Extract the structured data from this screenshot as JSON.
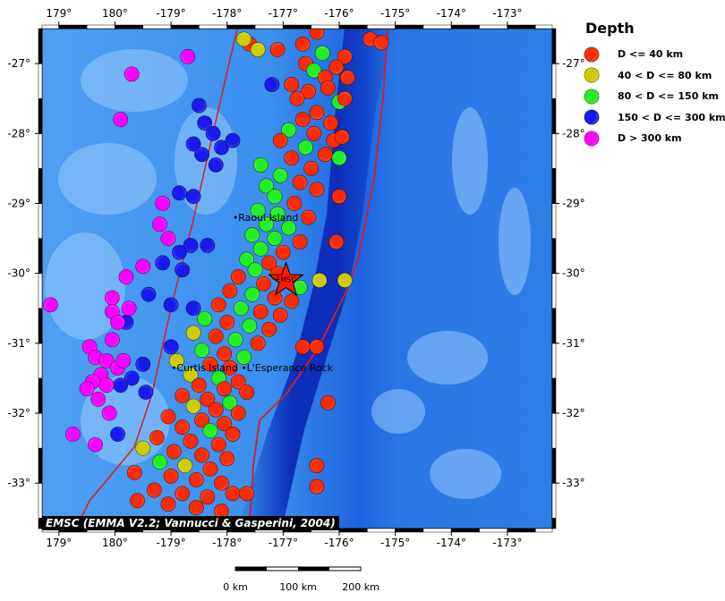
{
  "map": {
    "lon_ticks": [
      {
        "label": "179°",
        "lon": 179
      },
      {
        "label": "180°",
        "lon": 180
      },
      {
        "label": "-179°",
        "lon": 181
      },
      {
        "label": "-178°",
        "lon": 182
      },
      {
        "label": "-177°",
        "lon": 183
      },
      {
        "label": "-176°",
        "lon": 184
      },
      {
        "label": "-175°",
        "lon": 185
      },
      {
        "label": "-174°",
        "lon": 186
      },
      {
        "label": "-173°",
        "lon": 187
      }
    ],
    "lat_ticks": [
      {
        "label": "-27°",
        "lat": -27
      },
      {
        "label": "-28°",
        "lat": -28
      },
      {
        "label": "-29°",
        "lat": -29
      },
      {
        "label": "-30°",
        "lat": -30
      },
      {
        "label": "-31°",
        "lat": -31
      },
      {
        "label": "-32°",
        "lat": -32
      },
      {
        "label": "-33°",
        "lat": -33
      }
    ],
    "extent": {
      "lon_min": 178.7,
      "lon_max": 187.8,
      "lat_min": -33.65,
      "lat_max": -26.5
    },
    "colors": {
      "ocean": "#2f86e8",
      "trench": "#0a2fb8",
      "plate_boundary": "#d71e1e"
    },
    "epicenter": {
      "label": "EMSC",
      "lat": -30.1,
      "lon": 183.05,
      "color": "#ff1a00"
    },
    "place_labels": [
      {
        "text": "Raoul Island",
        "lat": -29.25,
        "lon": 182.2
      },
      {
        "text": "Curtis Island",
        "lat": -31.4,
        "lon": 181.1
      },
      {
        "text": "L'Esperance Rock",
        "lat": -31.4,
        "lon": 182.35
      }
    ]
  },
  "legend": {
    "title": "Depth",
    "items": [
      {
        "label": "D <= 40 km",
        "color": "#ff2a00"
      },
      {
        "label": "40 < D <= 80 km",
        "color": "#cccc00"
      },
      {
        "label": "80 < D <= 150 km",
        "color": "#22ee22"
      },
      {
        "label": "150 < D <= 300 km",
        "color": "#1a1aee"
      },
      {
        "label": "D > 300 km",
        "color": "#ff00ff"
      }
    ]
  },
  "credit": "EMSC (EMMA V2.2; Vannucci & Gasperini, 2004)",
  "scalebar": {
    "labels": [
      "0 km",
      "100 km",
      "200 km"
    ]
  },
  "focal_mechanisms": [
    {
      "lat": -26.55,
      "lon": 183.6,
      "d": "s"
    },
    {
      "lat": -26.72,
      "lon": 183.35,
      "d": "s"
    },
    {
      "lat": -26.65,
      "lon": 184.55,
      "d": "s"
    },
    {
      "lat": -26.7,
      "lon": 184.75,
      "d": "s"
    },
    {
      "lat": -26.72,
      "lon": 182.4,
      "d": "s"
    },
    {
      "lat": -26.8,
      "lon": 182.9,
      "d": "s"
    },
    {
      "lat": -26.85,
      "lon": 183.7,
      "d": "m"
    },
    {
      "lat": -26.9,
      "lon": 184.1,
      "d": "s"
    },
    {
      "lat": -27.0,
      "lon": 183.4,
      "d": "s"
    },
    {
      "lat": -27.05,
      "lon": 183.95,
      "d": "s"
    },
    {
      "lat": -27.1,
      "lon": 183.55,
      "d": "m"
    },
    {
      "lat": -27.2,
      "lon": 183.75,
      "d": "s"
    },
    {
      "lat": -27.3,
      "lon": 183.15,
      "d": "s"
    },
    {
      "lat": -27.35,
      "lon": 183.8,
      "d": "s"
    },
    {
      "lat": -27.4,
      "lon": 183.45,
      "d": "s"
    },
    {
      "lat": -27.5,
      "lon": 183.25,
      "d": "s"
    },
    {
      "lat": -27.55,
      "lon": 184.0,
      "d": "m"
    },
    {
      "lat": -27.7,
      "lon": 183.6,
      "d": "s"
    },
    {
      "lat": -27.8,
      "lon": 183.35,
      "d": "s"
    },
    {
      "lat": -27.85,
      "lon": 183.85,
      "d": "s"
    },
    {
      "lat": -27.95,
      "lon": 183.1,
      "d": "m"
    },
    {
      "lat": -28.0,
      "lon": 183.55,
      "d": "s"
    },
    {
      "lat": -28.1,
      "lon": 183.9,
      "d": "s"
    },
    {
      "lat": -28.1,
      "lon": 182.95,
      "d": "s"
    },
    {
      "lat": -28.2,
      "lon": 183.4,
      "d": "m"
    },
    {
      "lat": -28.3,
      "lon": 183.75,
      "d": "s"
    },
    {
      "lat": -28.35,
      "lon": 183.15,
      "d": "s"
    },
    {
      "lat": -28.45,
      "lon": 182.6,
      "d": "m"
    },
    {
      "lat": -28.5,
      "lon": 183.5,
      "d": "s"
    },
    {
      "lat": -28.6,
      "lon": 182.95,
      "d": "m"
    },
    {
      "lat": -28.7,
      "lon": 183.3,
      "d": "s"
    },
    {
      "lat": -28.75,
      "lon": 182.7,
      "d": "m"
    },
    {
      "lat": -28.8,
      "lon": 183.6,
      "d": "s"
    },
    {
      "lat": -28.9,
      "lon": 182.85,
      "d": "m"
    },
    {
      "lat": -29.0,
      "lon": 183.2,
      "d": "s"
    },
    {
      "lat": -29.1,
      "lon": 182.55,
      "d": "m"
    },
    {
      "lat": -29.15,
      "lon": 182.9,
      "d": "m"
    },
    {
      "lat": -29.2,
      "lon": 183.45,
      "d": "s"
    },
    {
      "lat": -29.3,
      "lon": 182.7,
      "d": "m"
    },
    {
      "lat": -29.35,
      "lon": 183.1,
      "d": "m"
    },
    {
      "lat": -29.45,
      "lon": 182.45,
      "d": "m"
    },
    {
      "lat": -29.5,
      "lon": 182.85,
      "d": "m"
    },
    {
      "lat": -29.55,
      "lon": 183.3,
      "d": "s"
    },
    {
      "lat": -29.65,
      "lon": 182.6,
      "d": "m"
    },
    {
      "lat": -29.7,
      "lon": 183.0,
      "d": "s"
    },
    {
      "lat": -29.8,
      "lon": 182.35,
      "d": "m"
    },
    {
      "lat": -29.85,
      "lon": 182.75,
      "d": "s"
    },
    {
      "lat": -29.95,
      "lon": 182.5,
      "d": "m"
    },
    {
      "lat": -30.0,
      "lon": 182.9,
      "d": "s"
    },
    {
      "lat": -30.05,
      "lon": 182.2,
      "d": "s"
    },
    {
      "lat": -30.1,
      "lon": 183.65,
      "d": "i"
    },
    {
      "lat": -30.15,
      "lon": 182.65,
      "d": "s"
    },
    {
      "lat": -30.2,
      "lon": 183.3,
      "d": "m"
    },
    {
      "lat": -30.25,
      "lon": 182.05,
      "d": "s"
    },
    {
      "lat": -30.3,
      "lon": 182.45,
      "d": "m"
    },
    {
      "lat": -30.35,
      "lon": 182.85,
      "d": "s"
    },
    {
      "lat": -30.4,
      "lon": 183.15,
      "d": "s"
    },
    {
      "lat": -30.45,
      "lon": 181.85,
      "d": "s"
    },
    {
      "lat": -30.5,
      "lon": 182.25,
      "d": "m"
    },
    {
      "lat": -30.55,
      "lon": 182.6,
      "d": "s"
    },
    {
      "lat": -30.6,
      "lon": 182.95,
      "d": "s"
    },
    {
      "lat": -30.65,
      "lon": 181.6,
      "d": "m"
    },
    {
      "lat": -30.7,
      "lon": 182.0,
      "d": "s"
    },
    {
      "lat": -30.75,
      "lon": 182.4,
      "d": "m"
    },
    {
      "lat": -30.8,
      "lon": 182.75,
      "d": "s"
    },
    {
      "lat": -30.85,
      "lon": 181.4,
      "d": "i"
    },
    {
      "lat": -30.9,
      "lon": 181.8,
      "d": "s"
    },
    {
      "lat": -30.95,
      "lon": 182.15,
      "d": "m"
    },
    {
      "lat": -31.0,
      "lon": 182.55,
      "d": "s"
    },
    {
      "lat": -31.05,
      "lon": 183.35,
      "d": "s"
    },
    {
      "lat": -31.1,
      "lon": 181.55,
      "d": "m"
    },
    {
      "lat": -31.15,
      "lon": 181.95,
      "d": "s"
    },
    {
      "lat": -31.2,
      "lon": 182.3,
      "d": "m"
    },
    {
      "lat": -31.25,
      "lon": 181.1,
      "d": "i"
    },
    {
      "lat": -31.3,
      "lon": 181.7,
      "d": "s"
    },
    {
      "lat": -31.35,
      "lon": 182.05,
      "d": "s"
    },
    {
      "lat": -31.45,
      "lon": 181.35,
      "d": "i"
    },
    {
      "lat": -31.5,
      "lon": 181.85,
      "d": "m"
    },
    {
      "lat": -31.55,
      "lon": 182.2,
      "d": "s"
    },
    {
      "lat": -31.6,
      "lon": 181.5,
      "d": "s"
    },
    {
      "lat": -31.65,
      "lon": 181.95,
      "d": "s"
    },
    {
      "lat": -31.7,
      "lon": 182.35,
      "d": "s"
    },
    {
      "lat": -31.75,
      "lon": 181.2,
      "d": "s"
    },
    {
      "lat": -31.8,
      "lon": 181.65,
      "d": "s"
    },
    {
      "lat": -31.85,
      "lon": 182.05,
      "d": "m"
    },
    {
      "lat": -31.85,
      "lon": 183.8,
      "d": "s"
    },
    {
      "lat": -31.9,
      "lon": 181.4,
      "d": "i"
    },
    {
      "lat": -31.95,
      "lon": 181.8,
      "d": "s"
    },
    {
      "lat": -32.0,
      "lon": 182.2,
      "d": "s"
    },
    {
      "lat": -32.05,
      "lon": 180.95,
      "d": "s"
    },
    {
      "lat": -32.1,
      "lon": 181.55,
      "d": "s"
    },
    {
      "lat": -32.15,
      "lon": 181.95,
      "d": "s"
    },
    {
      "lat": -32.2,
      "lon": 181.2,
      "d": "s"
    },
    {
      "lat": -32.25,
      "lon": 181.7,
      "d": "m"
    },
    {
      "lat": -32.3,
      "lon": 182.1,
      "d": "s"
    },
    {
      "lat": -32.35,
      "lon": 180.75,
      "d": "s"
    },
    {
      "lat": -32.4,
      "lon": 181.35,
      "d": "s"
    },
    {
      "lat": -32.45,
      "lon": 181.85,
      "d": "s"
    },
    {
      "lat": -32.5,
      "lon": 180.5,
      "d": "i"
    },
    {
      "lat": -32.55,
      "lon": 181.05,
      "d": "s"
    },
    {
      "lat": -32.6,
      "lon": 181.55,
      "d": "s"
    },
    {
      "lat": -32.65,
      "lon": 182.0,
      "d": "s"
    },
    {
      "lat": -32.7,
      "lon": 180.8,
      "d": "m"
    },
    {
      "lat": -32.75,
      "lon": 181.25,
      "d": "i"
    },
    {
      "lat": -32.8,
      "lon": 181.7,
      "d": "s"
    },
    {
      "lat": -32.85,
      "lon": 180.35,
      "d": "s"
    },
    {
      "lat": -32.9,
      "lon": 181.0,
      "d": "s"
    },
    {
      "lat": -32.95,
      "lon": 181.45,
      "d": "s"
    },
    {
      "lat": -33.0,
      "lon": 181.9,
      "d": "s"
    },
    {
      "lat": -33.05,
      "lon": 183.6,
      "d": "s"
    },
    {
      "lat": -33.1,
      "lon": 180.7,
      "d": "s"
    },
    {
      "lat": -33.15,
      "lon": 181.2,
      "d": "s"
    },
    {
      "lat": -33.2,
      "lon": 181.65,
      "d": "s"
    },
    {
      "lat": -33.15,
      "lon": 182.1,
      "d": "s"
    },
    {
      "lat": -33.15,
      "lon": 182.35,
      "d": "s"
    },
    {
      "lat": -33.25,
      "lon": 180.4,
      "d": "s"
    },
    {
      "lat": -33.3,
      "lon": 180.95,
      "d": "s"
    },
    {
      "lat": -33.35,
      "lon": 181.45,
      "d": "s"
    },
    {
      "lat": -33.4,
      "lon": 181.9,
      "d": "s"
    },
    {
      "lat": -32.75,
      "lon": 183.6,
      "d": "s"
    },
    {
      "lat": -27.2,
      "lon": 184.15,
      "d": "s"
    },
    {
      "lat": -27.5,
      "lon": 184.1,
      "d": "s"
    },
    {
      "lat": -28.05,
      "lon": 184.05,
      "d": "s"
    },
    {
      "lat": -28.35,
      "lon": 184.0,
      "d": "m"
    },
    {
      "lat": -28.9,
      "lon": 184.0,
      "d": "s"
    },
    {
      "lat": -29.55,
      "lon": 183.95,
      "d": "s"
    },
    {
      "lat": -30.1,
      "lon": 184.1,
      "d": "i"
    },
    {
      "lat": -31.05,
      "lon": 183.6,
      "d": "s"
    },
    {
      "lat": -26.65,
      "lon": 182.3,
      "d": "i"
    },
    {
      "lat": -26.8,
      "lon": 182.55,
      "d": "i"
    },
    {
      "lat": -27.3,
      "lon": 182.8,
      "d": "d"
    },
    {
      "lat": -27.6,
      "lon": 181.5,
      "d": "d"
    },
    {
      "lat": -27.85,
      "lon": 181.6,
      "d": "d"
    },
    {
      "lat": -28.0,
      "lon": 181.75,
      "d": "d"
    },
    {
      "lat": -28.15,
      "lon": 181.4,
      "d": "d"
    },
    {
      "lat": -28.2,
      "lon": 181.9,
      "d": "d"
    },
    {
      "lat": -28.3,
      "lon": 181.55,
      "d": "d"
    },
    {
      "lat": -28.45,
      "lon": 181.8,
      "d": "d"
    },
    {
      "lat": -28.85,
      "lon": 181.15,
      "d": "d"
    },
    {
      "lat": -28.9,
      "lon": 181.4,
      "d": "d"
    },
    {
      "lat": -29.6,
      "lon": 181.35,
      "d": "d"
    },
    {
      "lat": -29.7,
      "lon": 181.15,
      "d": "d"
    },
    {
      "lat": -29.85,
      "lon": 180.85,
      "d": "d"
    },
    {
      "lat": -29.95,
      "lon": 181.2,
      "d": "d"
    },
    {
      "lat": -30.3,
      "lon": 180.6,
      "d": "d"
    },
    {
      "lat": -30.45,
      "lon": 181.0,
      "d": "d"
    },
    {
      "lat": -30.5,
      "lon": 181.4,
      "d": "d"
    },
    {
      "lat": -30.7,
      "lon": 180.2,
      "d": "d"
    },
    {
      "lat": -31.05,
      "lon": 181.0,
      "d": "d"
    },
    {
      "lat": -31.3,
      "lon": 180.5,
      "d": "d"
    },
    {
      "lat": -31.5,
      "lon": 180.3,
      "d": "d"
    },
    {
      "lat": -31.6,
      "lon": 180.1,
      "d": "d"
    },
    {
      "lat": -31.7,
      "lon": 180.55,
      "d": "d"
    },
    {
      "lat": -32.3,
      "lon": 180.05,
      "d": "d"
    },
    {
      "lat": -29.6,
      "lon": 181.65,
      "d": "d"
    },
    {
      "lat": -28.1,
      "lon": 182.1,
      "d": "d"
    },
    {
      "lat": -26.9,
      "lon": 181.3,
      "d": "x"
    },
    {
      "lat": -27.15,
      "lon": 180.3,
      "d": "x"
    },
    {
      "lat": -27.8,
      "lon": 180.1,
      "d": "x"
    },
    {
      "lat": -29.0,
      "lon": 180.85,
      "d": "x"
    },
    {
      "lat": -29.3,
      "lon": 180.8,
      "d": "x"
    },
    {
      "lat": -29.5,
      "lon": 180.95,
      "d": "x"
    },
    {
      "lat": -29.9,
      "lon": 180.5,
      "d": "x"
    },
    {
      "lat": -30.05,
      "lon": 180.2,
      "d": "x"
    },
    {
      "lat": -30.35,
      "lon": 179.95,
      "d": "x"
    },
    {
      "lat": -30.45,
      "lon": 178.85,
      "d": "x"
    },
    {
      "lat": -30.5,
      "lon": 180.25,
      "d": "x"
    },
    {
      "lat": -30.55,
      "lon": 179.95,
      "d": "x"
    },
    {
      "lat": -30.7,
      "lon": 180.05,
      "d": "x"
    },
    {
      "lat": -30.95,
      "lon": 179.95,
      "d": "x"
    },
    {
      "lat": -31.05,
      "lon": 179.55,
      "d": "x"
    },
    {
      "lat": -31.2,
      "lon": 179.65,
      "d": "x"
    },
    {
      "lat": -31.25,
      "lon": 179.85,
      "d": "x"
    },
    {
      "lat": -31.35,
      "lon": 180.05,
      "d": "x"
    },
    {
      "lat": -31.45,
      "lon": 179.75,
      "d": "x"
    },
    {
      "lat": -31.55,
      "lon": 179.6,
      "d": "x"
    },
    {
      "lat": -31.6,
      "lon": 179.85,
      "d": "x"
    },
    {
      "lat": -31.65,
      "lon": 179.5,
      "d": "x"
    },
    {
      "lat": -31.8,
      "lon": 179.7,
      "d": "x"
    },
    {
      "lat": -32.0,
      "lon": 179.9,
      "d": "x"
    },
    {
      "lat": -32.3,
      "lon": 179.25,
      "d": "x"
    },
    {
      "lat": -32.45,
      "lon": 179.65,
      "d": "x"
    },
    {
      "lat": -31.25,
      "lon": 180.15,
      "d": "x"
    }
  ]
}
